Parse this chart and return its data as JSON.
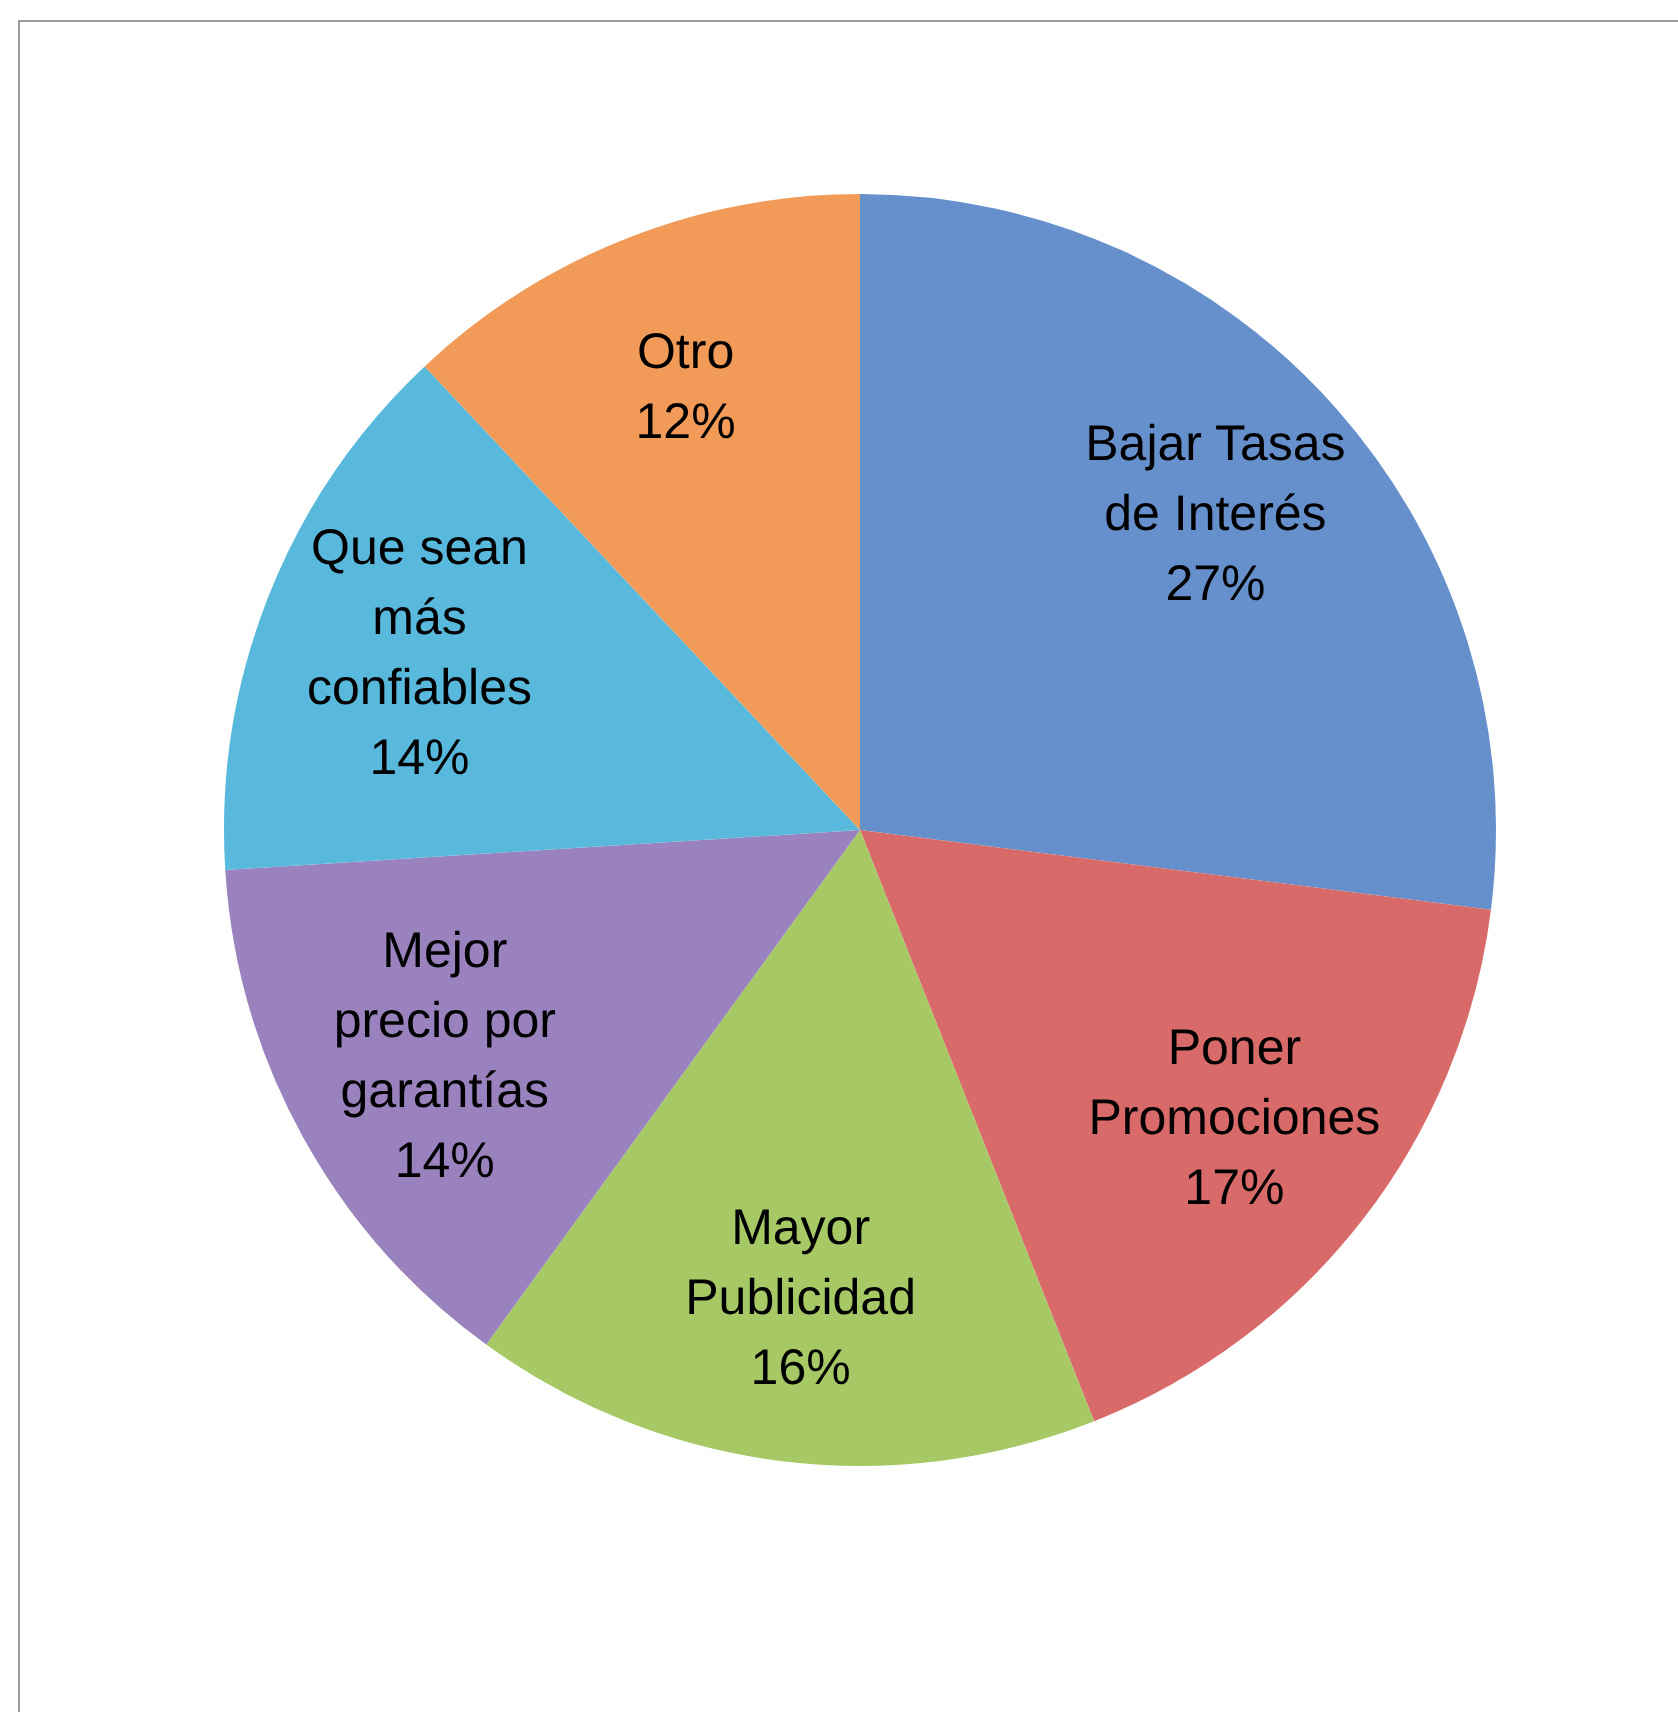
{
  "chart_data": {
    "type": "pie",
    "categories": [
      "Bajar Tasas de Interés",
      "Poner Promociones",
      "Mayor Publicidad",
      "Mejor precio por garantías",
      "Que sean más confiables",
      "Otro"
    ],
    "values": [
      27,
      17,
      16,
      14,
      14,
      12
    ],
    "value_labels": [
      "27%",
      "17%",
      "16%",
      "14%",
      "14%",
      "12%"
    ],
    "colors": [
      "#6690cc",
      "#d86b69",
      "#a6c966",
      "#9a82bf",
      "#58b9dc",
      "#f29b58"
    ],
    "legend": false
  }
}
